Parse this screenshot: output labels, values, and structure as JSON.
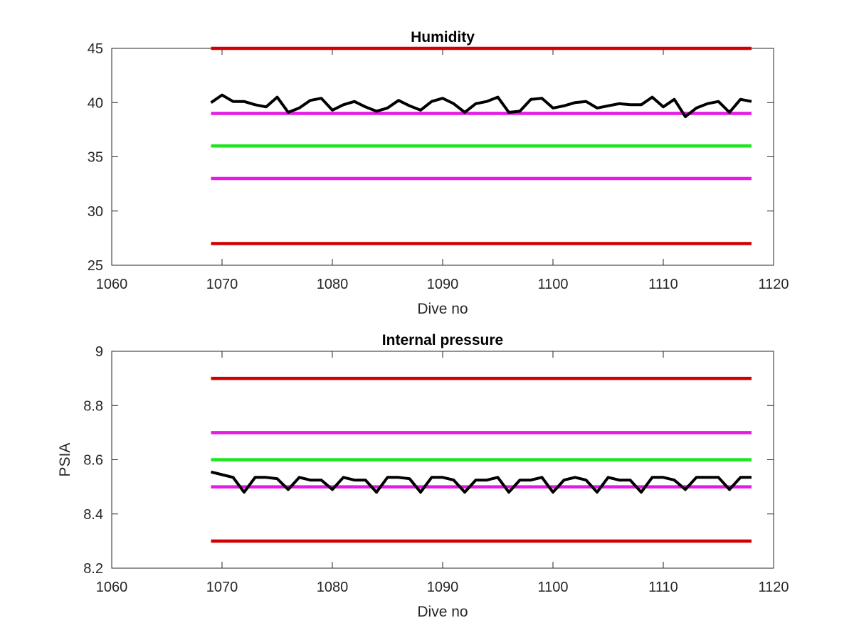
{
  "chart_data": [
    {
      "type": "line",
      "title": "Humidity",
      "xlabel": "Dive no",
      "ylabel": "",
      "xlim": [
        1060,
        1120
      ],
      "ylim": [
        25,
        45
      ],
      "xticks": [
        1060,
        1070,
        1080,
        1090,
        1100,
        1110,
        1120
      ],
      "yticks": [
        25,
        30,
        35,
        40,
        45
      ],
      "xtick_labels": [
        "1060",
        "1070",
        "1080",
        "1090",
        "1100",
        "1110",
        "1120"
      ],
      "ytick_labels": [
        "25",
        "30",
        "35",
        "40",
        "45"
      ],
      "grid": false,
      "reference_lines": [
        {
          "y": 45,
          "x": [
            1069,
            1118
          ],
          "color": "#d00000"
        },
        {
          "y": 39,
          "x": [
            1069,
            1118
          ],
          "color": "#e619e6"
        },
        {
          "y": 36,
          "x": [
            1069,
            1118
          ],
          "color": "#1ee61e"
        },
        {
          "y": 33,
          "x": [
            1069,
            1118
          ],
          "color": "#e619e6"
        },
        {
          "y": 27,
          "x": [
            1069,
            1118
          ],
          "color": "#d00000"
        }
      ],
      "series": [
        {
          "color": "#000000",
          "x": [
            1069,
            1070,
            1071,
            1072,
            1073,
            1074,
            1075,
            1076,
            1077,
            1078,
            1079,
            1080,
            1081,
            1082,
            1083,
            1084,
            1085,
            1086,
            1087,
            1088,
            1089,
            1090,
            1091,
            1092,
            1093,
            1094,
            1095,
            1096,
            1097,
            1098,
            1099,
            1100,
            1101,
            1102,
            1103,
            1104,
            1105,
            1106,
            1107,
            1108,
            1109,
            1110,
            1111,
            1112,
            1113,
            1114,
            1115,
            1116,
            1117,
            1118
          ],
          "values": [
            40.0,
            40.7,
            40.1,
            40.1,
            39.8,
            39.6,
            40.5,
            39.1,
            39.5,
            40.2,
            40.4,
            39.3,
            39.8,
            40.1,
            39.6,
            39.2,
            39.5,
            40.2,
            39.7,
            39.3,
            40.1,
            40.4,
            39.9,
            39.1,
            39.9,
            40.1,
            40.5,
            39.1,
            39.2,
            40.3,
            40.4,
            39.5,
            39.7,
            40.0,
            40.1,
            39.5,
            39.7,
            39.9,
            39.8,
            39.8,
            40.5,
            39.6,
            40.3,
            38.7,
            39.5,
            39.9,
            40.1,
            39.1,
            40.3,
            40.1
          ]
        }
      ]
    },
    {
      "type": "line",
      "title": "Internal pressure",
      "xlabel": "Dive no",
      "ylabel": "PSIA",
      "xlim": [
        1060,
        1120
      ],
      "ylim": [
        8.2,
        9.0
      ],
      "xticks": [
        1060,
        1070,
        1080,
        1090,
        1100,
        1110,
        1120
      ],
      "yticks": [
        8.2,
        8.4,
        8.6,
        8.8,
        9.0
      ],
      "xtick_labels": [
        "1060",
        "1070",
        "1080",
        "1090",
        "1100",
        "1110",
        "1120"
      ],
      "ytick_labels": [
        "8.2",
        "8.4",
        "8.6",
        "8.8",
        "9"
      ],
      "grid": false,
      "reference_lines": [
        {
          "y": 8.9,
          "x": [
            1069,
            1118
          ],
          "color": "#d00000"
        },
        {
          "y": 8.7,
          "x": [
            1069,
            1118
          ],
          "color": "#e619e6"
        },
        {
          "y": 8.6,
          "x": [
            1069,
            1118
          ],
          "color": "#1ee61e"
        },
        {
          "y": 8.5,
          "x": [
            1069,
            1118
          ],
          "color": "#e619e6"
        },
        {
          "y": 8.3,
          "x": [
            1069,
            1118
          ],
          "color": "#d00000"
        }
      ],
      "series": [
        {
          "color": "#000000",
          "x": [
            1069,
            1070,
            1071,
            1072,
            1073,
            1074,
            1075,
            1076,
            1077,
            1078,
            1079,
            1080,
            1081,
            1082,
            1083,
            1084,
            1085,
            1086,
            1087,
            1088,
            1089,
            1090,
            1091,
            1092,
            1093,
            1094,
            1095,
            1096,
            1097,
            1098,
            1099,
            1100,
            1101,
            1102,
            1103,
            1104,
            1105,
            1106,
            1107,
            1108,
            1109,
            1110,
            1111,
            1112,
            1113,
            1114,
            1115,
            1116,
            1117,
            1118
          ],
          "values": [
            8.555,
            8.545,
            8.535,
            8.48,
            8.535,
            8.535,
            8.53,
            8.49,
            8.535,
            8.525,
            8.525,
            8.49,
            8.535,
            8.525,
            8.525,
            8.48,
            8.535,
            8.535,
            8.53,
            8.48,
            8.535,
            8.535,
            8.525,
            8.48,
            8.525,
            8.525,
            8.535,
            8.48,
            8.525,
            8.525,
            8.535,
            8.48,
            8.525,
            8.535,
            8.525,
            8.48,
            8.535,
            8.525,
            8.525,
            8.48,
            8.535,
            8.535,
            8.525,
            8.49,
            8.535,
            8.535,
            8.535,
            8.49,
            8.535,
            8.535
          ]
        }
      ]
    }
  ]
}
